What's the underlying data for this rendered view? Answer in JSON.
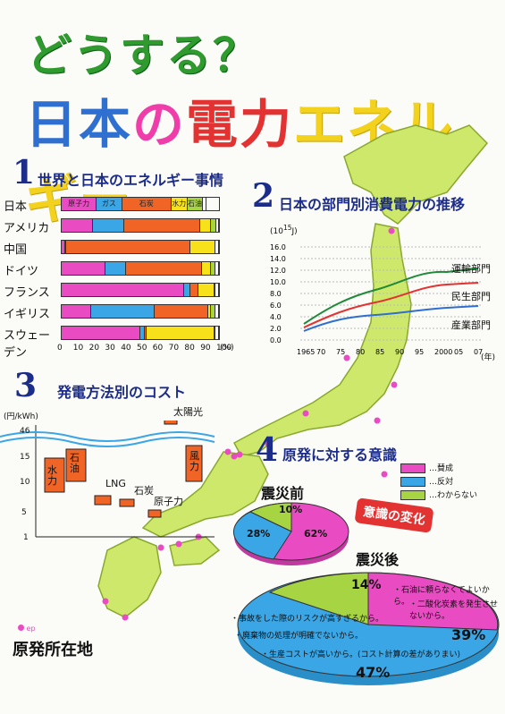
{
  "title": {
    "line1": "どうする？",
    "line2_parts": [
      "日本",
      "の",
      "電力",
      "エネルギー"
    ]
  },
  "section1": {
    "num": "1",
    "title": "世界と日本のエネルギー事情",
    "rows": [
      {
        "label": "日本",
        "segments": [
          {
            "v": 22,
            "c": "#e94bc2",
            "t": "原子力"
          },
          {
            "v": 16,
            "c": "#3aa6e6",
            "t": "ガス"
          },
          {
            "v": 31,
            "c": "#f06425",
            "t": "石炭"
          },
          {
            "v": 10,
            "c": "#f7e11a",
            "t": "水力"
          },
          {
            "v": 10,
            "c": "#a6d442",
            "t": "石油"
          },
          {
            "v": 2,
            "c": "#ffffff",
            "t": ""
          }
        ]
      },
      {
        "label": "アメリカ",
        "segments": [
          {
            "v": 20,
            "c": "#e94bc2",
            "t": ""
          },
          {
            "v": 20,
            "c": "#3aa6e6",
            "t": ""
          },
          {
            "v": 48,
            "c": "#f06425",
            "t": ""
          },
          {
            "v": 7,
            "c": "#f7e11a",
            "t": ""
          },
          {
            "v": 3,
            "c": "#a6d442",
            "t": ""
          },
          {
            "v": 2,
            "c": "#ffffff",
            "t": ""
          }
        ]
      },
      {
        "label": "中国",
        "segments": [
          {
            "v": 2,
            "c": "#e94bc2",
            "t": ""
          },
          {
            "v": 1,
            "c": "#3aa6e6",
            "t": ""
          },
          {
            "v": 79,
            "c": "#f06425",
            "t": ""
          },
          {
            "v": 16,
            "c": "#f7e11a",
            "t": ""
          },
          {
            "v": 2,
            "c": "#ffffff",
            "t": ""
          }
        ]
      },
      {
        "label": "ドイツ",
        "segments": [
          {
            "v": 28,
            "c": "#e94bc2",
            "t": ""
          },
          {
            "v": 13,
            "c": "#3aa6e6",
            "t": ""
          },
          {
            "v": 48,
            "c": "#f06425",
            "t": ""
          },
          {
            "v": 6,
            "c": "#f7e11a",
            "t": ""
          },
          {
            "v": 3,
            "c": "#a6d442",
            "t": ""
          },
          {
            "v": 2,
            "c": "#ffffff",
            "t": ""
          }
        ]
      },
      {
        "label": "フランス",
        "segments": [
          {
            "v": 78,
            "c": "#e94bc2",
            "t": ""
          },
          {
            "v": 4,
            "c": "#3aa6e6",
            "t": ""
          },
          {
            "v": 5,
            "c": "#f06425",
            "t": ""
          },
          {
            "v": 10,
            "c": "#f7e11a",
            "t": ""
          },
          {
            "v": 1,
            "c": "#a6d442",
            "t": ""
          },
          {
            "v": 2,
            "c": "#ffffff",
            "t": ""
          }
        ]
      },
      {
        "label": "イギリス",
        "segments": [
          {
            "v": 19,
            "c": "#e94bc2",
            "t": ""
          },
          {
            "v": 40,
            "c": "#3aa6e6",
            "t": ""
          },
          {
            "v": 34,
            "c": "#f06425",
            "t": ""
          },
          {
            "v": 2,
            "c": "#f7e11a",
            "t": ""
          },
          {
            "v": 3,
            "c": "#a6d442",
            "t": ""
          },
          {
            "v": 2,
            "c": "#ffffff",
            "t": ""
          }
        ]
      },
      {
        "label": "スウェーデン",
        "segments": [
          {
            "v": 50,
            "c": "#e94bc2",
            "t": ""
          },
          {
            "v": 3,
            "c": "#3aa6e6",
            "t": ""
          },
          {
            "v": 1,
            "c": "#f06425",
            "t": ""
          },
          {
            "v": 43,
            "c": "#f7e11a",
            "t": ""
          },
          {
            "v": 1,
            "c": "#a6d442",
            "t": ""
          },
          {
            "v": 2,
            "c": "#ffffff",
            "t": ""
          }
        ]
      }
    ],
    "axis": [
      "0",
      "10",
      "20",
      "30",
      "40",
      "50",
      "60",
      "70",
      "80",
      "90",
      "100"
    ],
    "unit": "(%)"
  },
  "section2": {
    "num": "2",
    "title": "日本の部門別消費電力の推移",
    "yunit": "(10",
    "yunit_sup": "15",
    "yunit_end": "J)",
    "yticks": [
      "16.0",
      "14.0",
      "12.0",
      "10.0",
      "8.0",
      "6.0",
      "4.0",
      "2.0",
      "0.0"
    ],
    "xticks": [
      "1965",
      "70",
      "75",
      "80",
      "85",
      "90",
      "95",
      "2000",
      "05",
      "07"
    ],
    "xunit": "(年)",
    "series_labels": [
      "運輸部門",
      "民生部門",
      "産業部門"
    ]
  },
  "section3": {
    "num": "3",
    "title": "発電方法別のコスト",
    "yunit": "(円/kWh)",
    "yticks": [
      "46",
      "15",
      "10",
      "5",
      "1"
    ],
    "items": [
      "水力",
      "石油",
      "LNG",
      "石炭",
      "原子力",
      "太陽光",
      "風力"
    ]
  },
  "section4": {
    "num": "4",
    "title": "原発に対する意識",
    "legend": [
      "…賛成",
      "…反対",
      "…わからない"
    ],
    "before": {
      "title": "震災前",
      "values": [
        "10%",
        "28%",
        "62%"
      ]
    },
    "after": {
      "title": "震災後",
      "values": [
        "14%",
        "47%",
        "39%"
      ]
    },
    "change": "意識の変化",
    "reasons_for": [
      "・石油に頼らなくてよいから。",
      "・二酸化炭素を発生させないから。"
    ],
    "reasons_against": [
      "・事故をした際のリスクが高すぎるから。",
      "・廃棄物の処理が明確でないから。",
      "・生産コストが高いから。(コスト計算の差がありまい)"
    ]
  },
  "map": {
    "legend": "原発所在地",
    "legend_mark": "ep"
  }
}
